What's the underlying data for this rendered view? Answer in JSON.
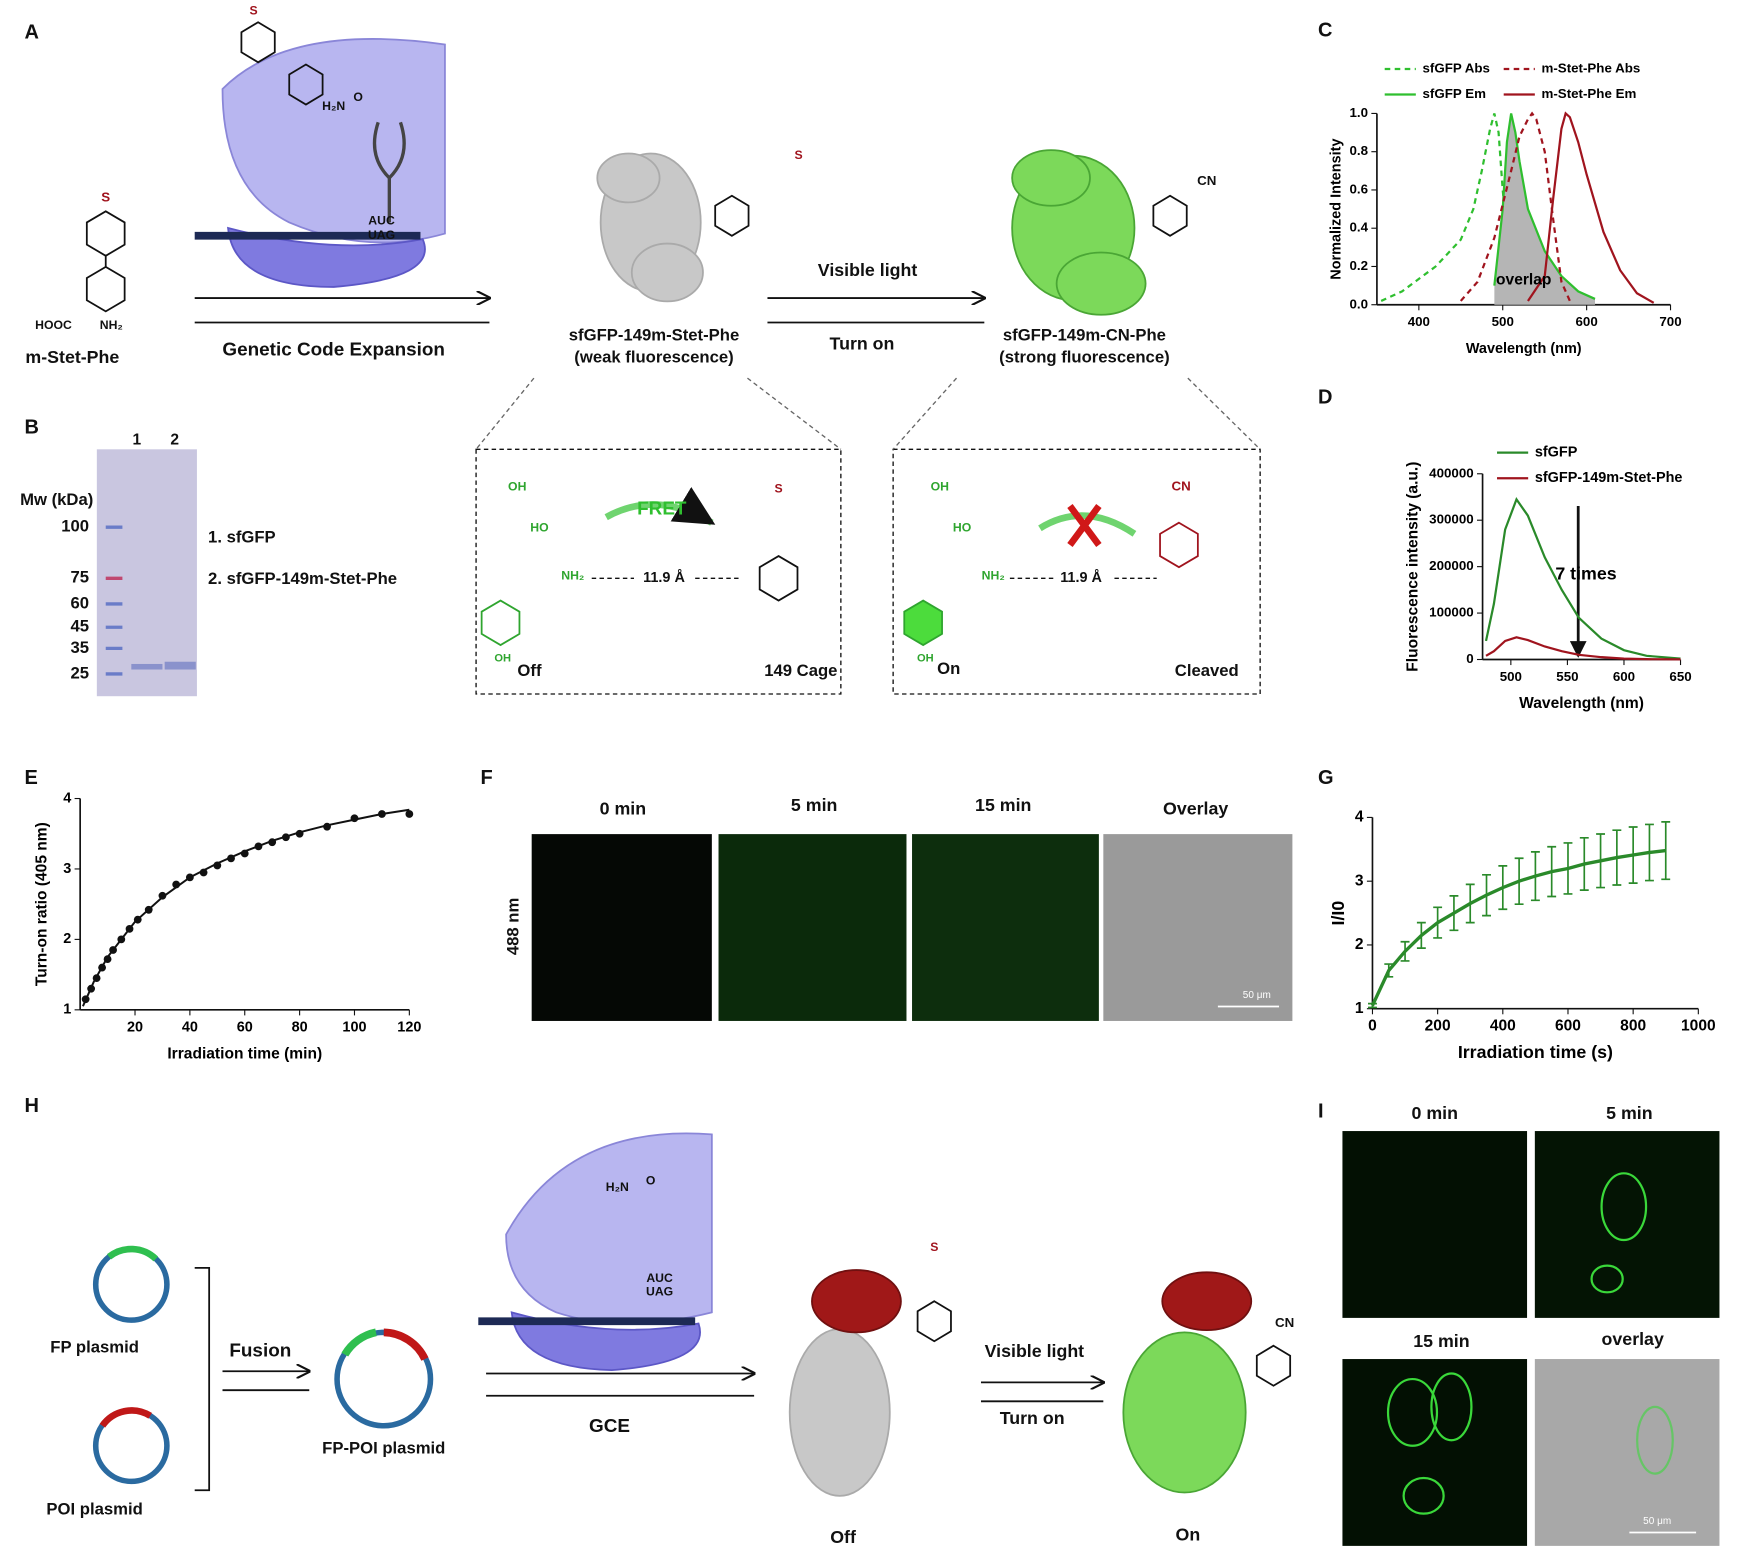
{
  "panels": {
    "A": {
      "label": "A",
      "compound": "m-Stet-Phe",
      "compound_atoms": [
        "HOOC",
        "NH₂",
        "S"
      ],
      "arrow": "Genetic Code Expansion",
      "codons": [
        "AUC",
        "UAG"
      ],
      "trna_atoms": [
        "S",
        "O",
        "H₂N"
      ],
      "protein_off": "sfGFP-149m-Stet-Phe",
      "off_note": "(weak fluorescence)",
      "arrow_top": "Visible light",
      "arrow_bottom": "Turn on",
      "protein_on": "sfGFP-149m-CN-Phe",
      "on_note": "(strong fluorescence)",
      "off_atoms": [
        "S"
      ],
      "on_atoms": [
        "CN"
      ],
      "box_off": {
        "fret": "FRET",
        "distance": "11.9 Å",
        "left": "Off",
        "right": "149 Cage",
        "atoms": [
          "OH",
          "HO",
          "NH₂",
          "OH",
          "S"
        ]
      },
      "box_on": {
        "distance": "11.9 Å",
        "left": "On",
        "right": "Cleaved",
        "atoms": [
          "OH",
          "HO",
          "NH₂",
          "OH",
          "CN"
        ]
      }
    },
    "B": {
      "label": "B",
      "lanes": [
        "1",
        "2"
      ],
      "mw_label": "Mw (kDa)",
      "markers": [
        "100",
        "75",
        "60",
        "45",
        "35",
        "25"
      ],
      "legend": [
        "1.  sfGFP",
        "2.  sfGFP-149m-Stet-Phe"
      ]
    },
    "C": {
      "label": "C"
    },
    "D": {
      "label": "D"
    },
    "E": {
      "label": "E"
    },
    "F": {
      "label": "F",
      "columns": [
        "0 min",
        "5 min",
        "15 min",
        "Overlay"
      ],
      "row": "488 nm",
      "scale": "50 μm"
    },
    "G": {
      "label": "G"
    },
    "H": {
      "label": "H",
      "fp": "FP plasmid",
      "poi": "POI plasmid",
      "fusion": "Fusion",
      "fused": "FP-POI plasmid",
      "gce": "GCE",
      "codons": [
        "AUC",
        "UAG"
      ],
      "off": "Off",
      "arrow_top": "Visible light",
      "arrow_bottom": "Turn on",
      "on": "On",
      "atoms": [
        "S",
        "CN",
        "H₂N",
        "O"
      ]
    },
    "I": {
      "label": "I",
      "columns": [
        "0 min",
        "5 min",
        "15 min",
        "overlay"
      ],
      "scale": "50 μm"
    }
  },
  "chart_data": [
    {
      "type": "line",
      "xlabel": "Wavelength (nm)",
      "ylabel": "Normalized Intensity",
      "annotation": "overlap",
      "xlim": [
        350,
        700
      ],
      "xticks": [
        400,
        500,
        600,
        700
      ],
      "ylim": [
        0,
        1
      ],
      "yticks": [
        {
          "value": 0,
          "label": "0.0"
        },
        0.2,
        0.4,
        0.6,
        0.8,
        {
          "value": 1,
          "label": "1.0"
        }
      ],
      "series": [
        {
          "name": "sfGFP Abs",
          "color": "#2fbf2f",
          "dash": true,
          "x": [
            355,
            380,
            420,
            450,
            465,
            475,
            485,
            490,
            495,
            500,
            510,
            520
          ],
          "values": [
            0.02,
            0.07,
            0.2,
            0.34,
            0.5,
            0.7,
            0.92,
            1.0,
            0.9,
            0.6,
            0.15,
            0.03
          ]
        },
        {
          "name": "sfGFP Em",
          "color": "#2fbf2f",
          "fill": "#b5b5b5",
          "x": [
            490,
            500,
            505,
            510,
            515,
            520,
            530,
            550,
            570,
            590,
            610
          ],
          "values": [
            0.1,
            0.5,
            0.85,
            1.0,
            0.9,
            0.75,
            0.5,
            0.28,
            0.15,
            0.07,
            0.03
          ]
        },
        {
          "name": "m-Stet-Phe Abs",
          "color": "#a0141e",
          "dash": true,
          "x": [
            450,
            470,
            490,
            510,
            520,
            530,
            535,
            540,
            550,
            560,
            570,
            580
          ],
          "values": [
            0.02,
            0.12,
            0.35,
            0.7,
            0.88,
            0.97,
            1.0,
            0.97,
            0.8,
            0.45,
            0.12,
            0.02
          ]
        },
        {
          "name": "m-Stet-Phe Em",
          "color": "#a0141e",
          "x": [
            530,
            550,
            560,
            570,
            575,
            580,
            590,
            600,
            620,
            640,
            660,
            680
          ],
          "values": [
            0.02,
            0.15,
            0.55,
            0.92,
            1.0,
            0.98,
            0.85,
            0.68,
            0.38,
            0.18,
            0.06,
            0.01
          ]
        }
      ]
    },
    {
      "type": "line",
      "xlabel": "Wavelength (nm)",
      "ylabel": "Fluorescence intensity (a.u.)",
      "annotation": "7 times",
      "xlim": [
        475,
        650
      ],
      "xticks": [
        500,
        550,
        600,
        650
      ],
      "ylim": [
        0,
        400000
      ],
      "yticks": [
        0,
        100000,
        200000,
        300000,
        400000
      ],
      "series": [
        {
          "name": "sfGFP",
          "color": "#2a8a2a",
          "x": [
            478,
            485,
            495,
            505,
            515,
            530,
            545,
            560,
            580,
            600,
            620,
            650
          ],
          "values": [
            40000,
            120000,
            280000,
            345000,
            310000,
            220000,
            150000,
            90000,
            45000,
            20000,
            8000,
            2000
          ]
        },
        {
          "name": "sfGFP-149m-Stet-Phe",
          "color": "#a0141e",
          "x": [
            478,
            485,
            495,
            505,
            515,
            530,
            545,
            560,
            580,
            600,
            620,
            650
          ],
          "values": [
            8000,
            18000,
            40000,
            48000,
            42000,
            28000,
            18000,
            10000,
            5000,
            2000,
            800,
            200
          ]
        }
      ]
    },
    {
      "type": "scatter",
      "xlabel": "Irradiation time (min)",
      "ylabel": "Turn-on ratio (405 nm)",
      "color": "#111111",
      "xlim": [
        0,
        120
      ],
      "xticks": [
        20,
        40,
        60,
        80,
        100,
        120
      ],
      "ylim": [
        1,
        4
      ],
      "yticks": [
        1,
        2,
        3,
        4
      ],
      "x": [
        2,
        4,
        6,
        8,
        10,
        12,
        15,
        18,
        21,
        25,
        30,
        35,
        40,
        45,
        50,
        55,
        60,
        65,
        70,
        75,
        80,
        90,
        100,
        110,
        120
      ],
      "values": [
        1.15,
        1.3,
        1.45,
        1.6,
        1.72,
        1.85,
        2.0,
        2.15,
        2.28,
        2.42,
        2.62,
        2.78,
        2.88,
        2.95,
        3.05,
        3.15,
        3.22,
        3.32,
        3.38,
        3.45,
        3.5,
        3.6,
        3.72,
        3.78,
        3.78
      ],
      "fit": {
        "x": [
          1,
          5,
          10,
          20,
          30,
          40,
          50,
          60,
          70,
          80,
          90,
          100,
          110,
          120
        ],
        "values": [
          1.05,
          1.4,
          1.75,
          2.25,
          2.6,
          2.88,
          3.08,
          3.25,
          3.4,
          3.52,
          3.62,
          3.7,
          3.78,
          3.84
        ]
      }
    },
    {
      "type": "errorline",
      "xlabel": "Irradiation time (s)",
      "ylabel": "I/I0",
      "color": "#2a8a2a",
      "xlim": [
        0,
        1000
      ],
      "xticks": [
        0,
        200,
        400,
        600,
        800,
        1000
      ],
      "ylim": [
        1,
        4
      ],
      "yticks": [
        1,
        2,
        3,
        4
      ],
      "x": [
        0,
        50,
        100,
        150,
        200,
        250,
        300,
        350,
        400,
        450,
        500,
        550,
        600,
        650,
        700,
        750,
        800,
        850,
        900
      ],
      "values": [
        1.05,
        1.6,
        1.9,
        2.15,
        2.35,
        2.5,
        2.65,
        2.78,
        2.9,
        3.0,
        3.08,
        3.15,
        3.2,
        3.27,
        3.32,
        3.37,
        3.41,
        3.45,
        3.48
      ],
      "errors": [
        0.03,
        0.1,
        0.15,
        0.2,
        0.24,
        0.27,
        0.3,
        0.32,
        0.34,
        0.36,
        0.38,
        0.39,
        0.4,
        0.41,
        0.42,
        0.43,
        0.44,
        0.44,
        0.45
      ]
    }
  ]
}
